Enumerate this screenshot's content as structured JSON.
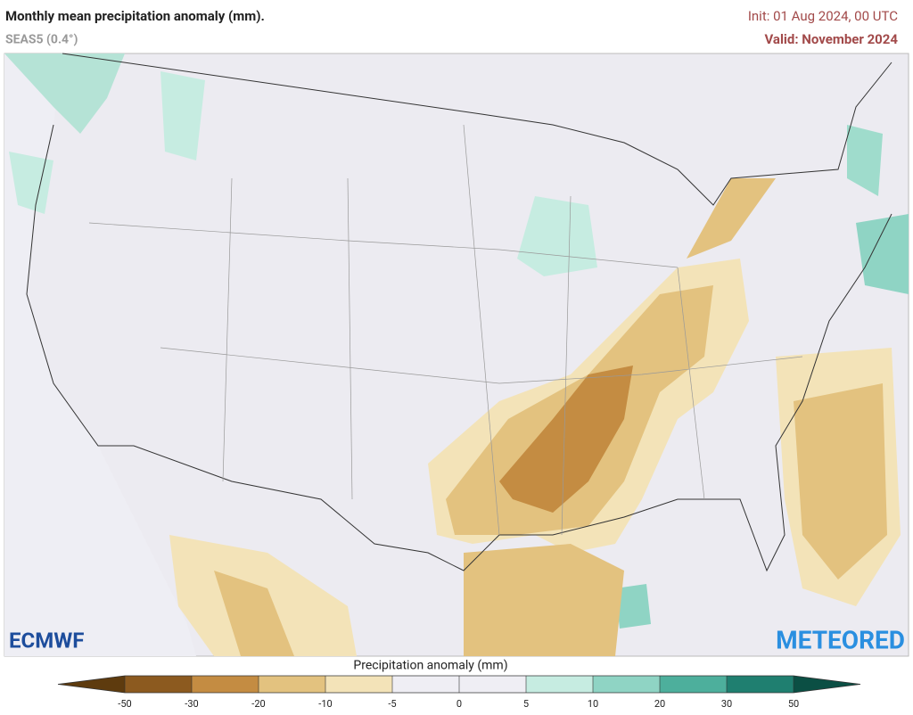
{
  "header": {
    "title": "Monthly mean precipitation anomaly (mm).",
    "subtitle": "SEAS5 (0.4°)",
    "init": "Init: 01 Aug 2024, 00 UTC",
    "valid": "Valid: November 2024"
  },
  "logos": {
    "left": "ECMWF",
    "right": "METEORED"
  },
  "colorbar": {
    "label": "Precipitation anomaly (mm)",
    "ticks": [
      -50,
      -30,
      -20,
      -10,
      -5,
      0,
      5,
      10,
      20,
      30,
      50
    ],
    "colors": [
      "#5e3b0e",
      "#8c5a1f",
      "#c48c42",
      "#e3c27f",
      "#f3e3b8",
      "#efeef4",
      "#efeef4",
      "#c6ece1",
      "#8fd4c4",
      "#4daf9c",
      "#1f7f70",
      "#0b4f44"
    ]
  }
}
